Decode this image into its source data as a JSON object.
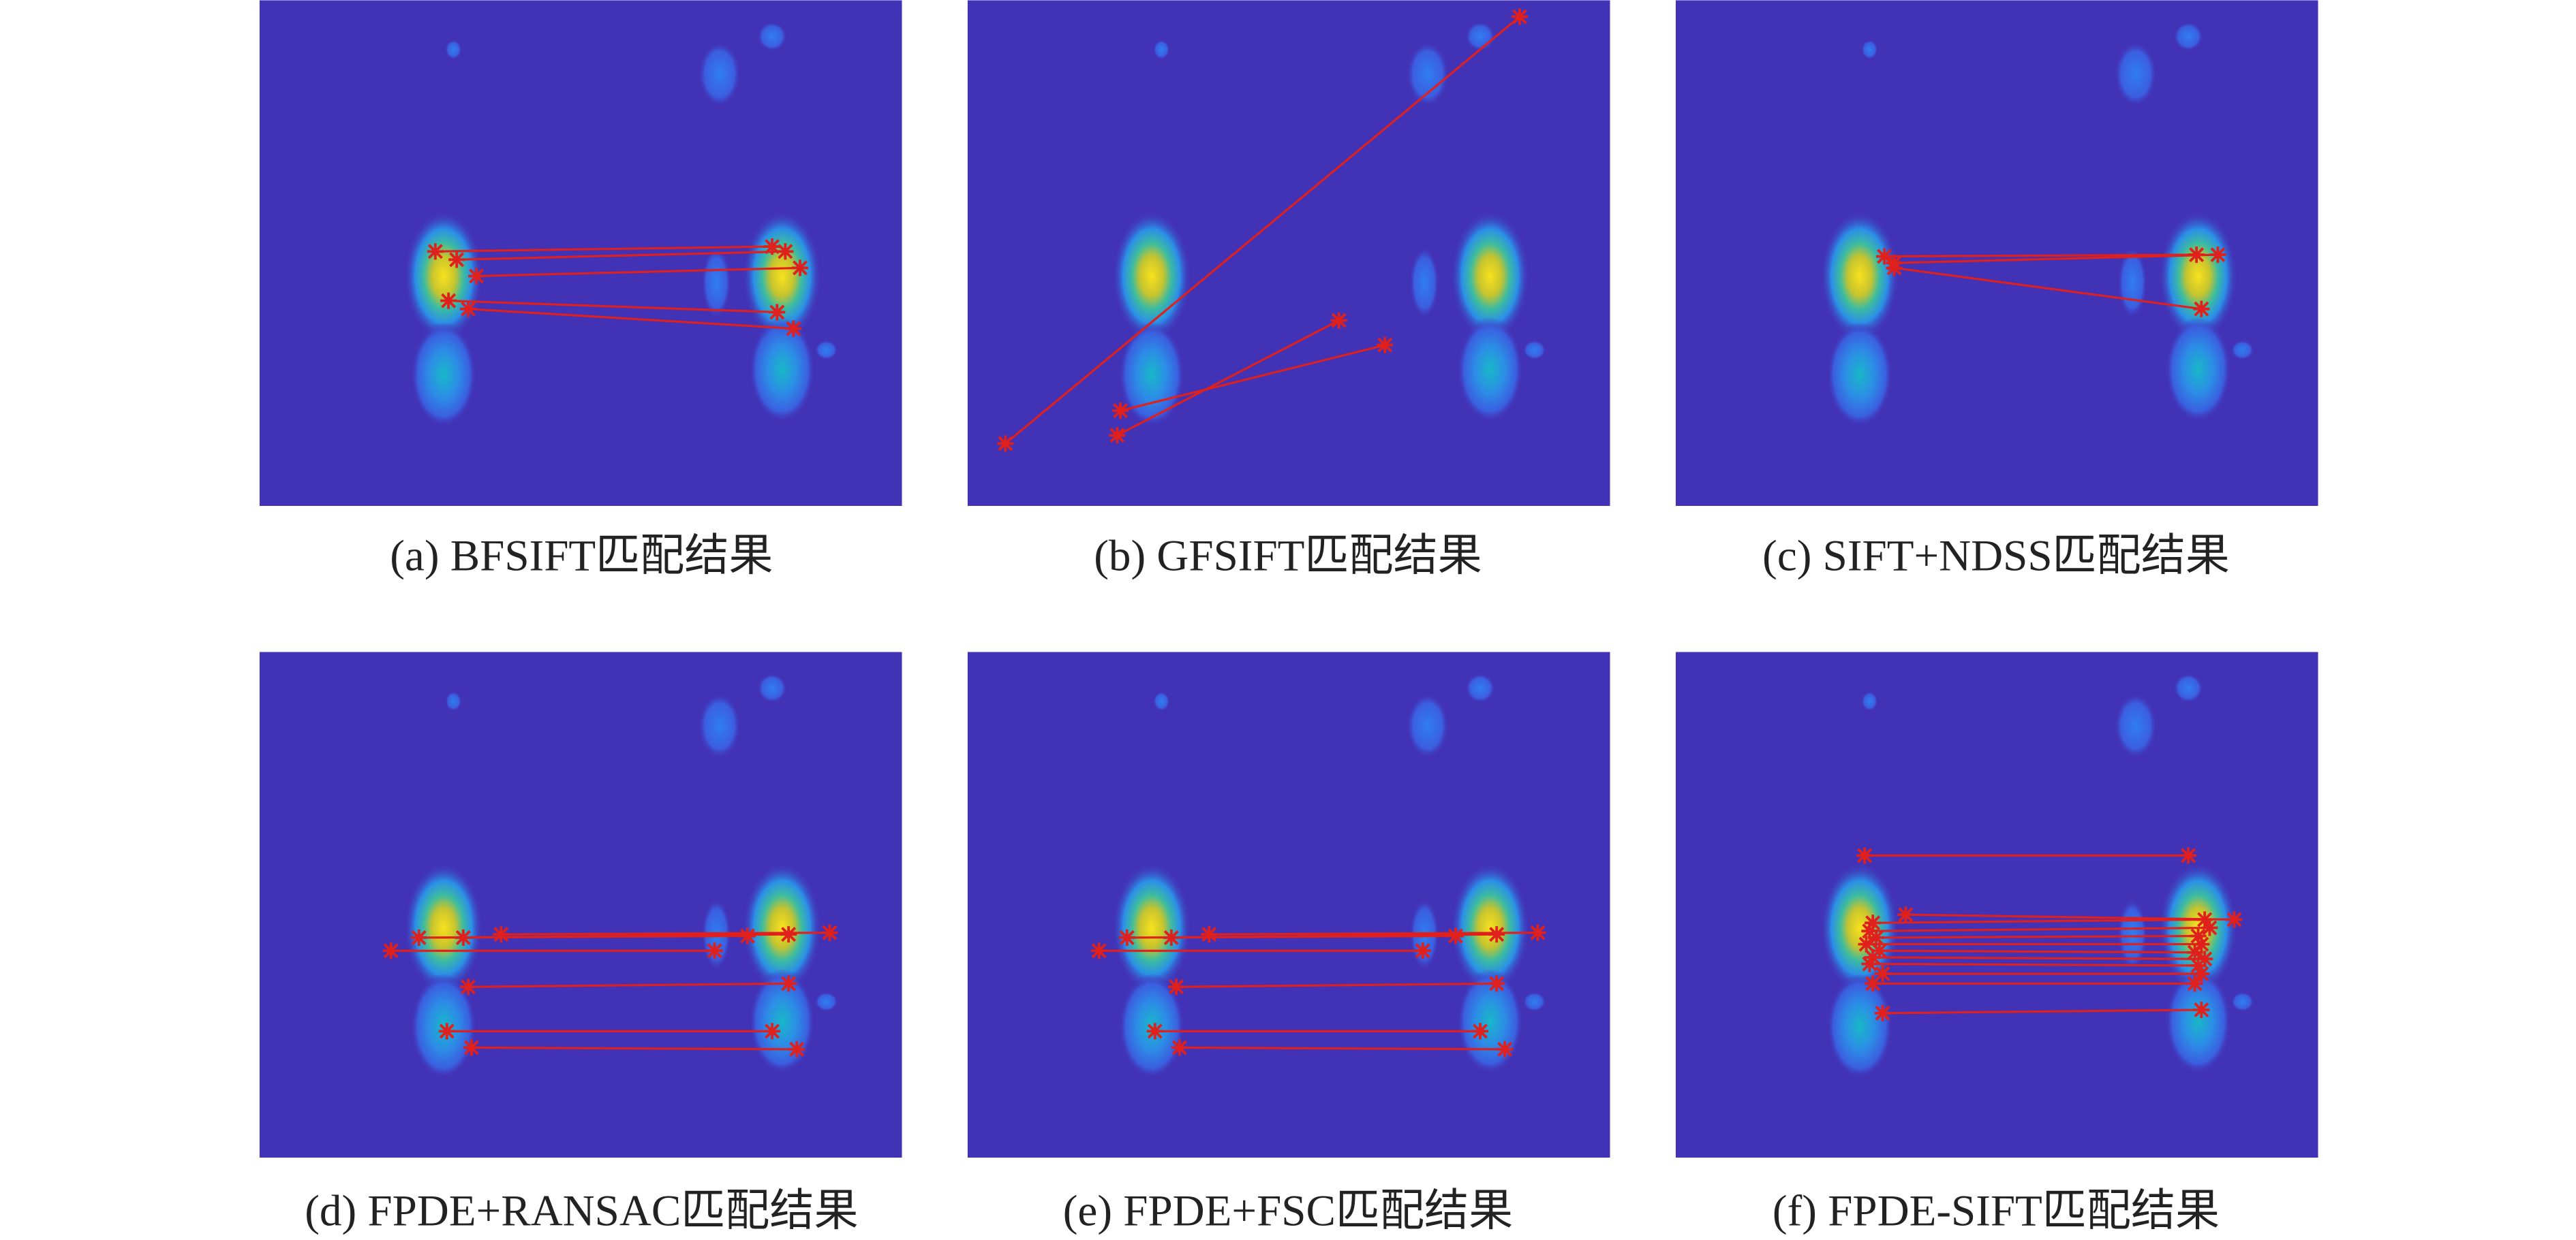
{
  "figure": {
    "panels": [
      {
        "caption": "(a) BFSIFT匹配结果"
      },
      {
        "caption": "(b) GFSIFT匹配结果"
      },
      {
        "caption": "(c) SIFT+NDSS匹配结果"
      },
      {
        "caption": "(d) FPDE+RANSAC匹配结果"
      },
      {
        "caption": "(e) FPDE+FSC匹配结果"
      },
      {
        "caption": "(f) FPDE-SIFT匹配结果"
      }
    ]
  }
}
